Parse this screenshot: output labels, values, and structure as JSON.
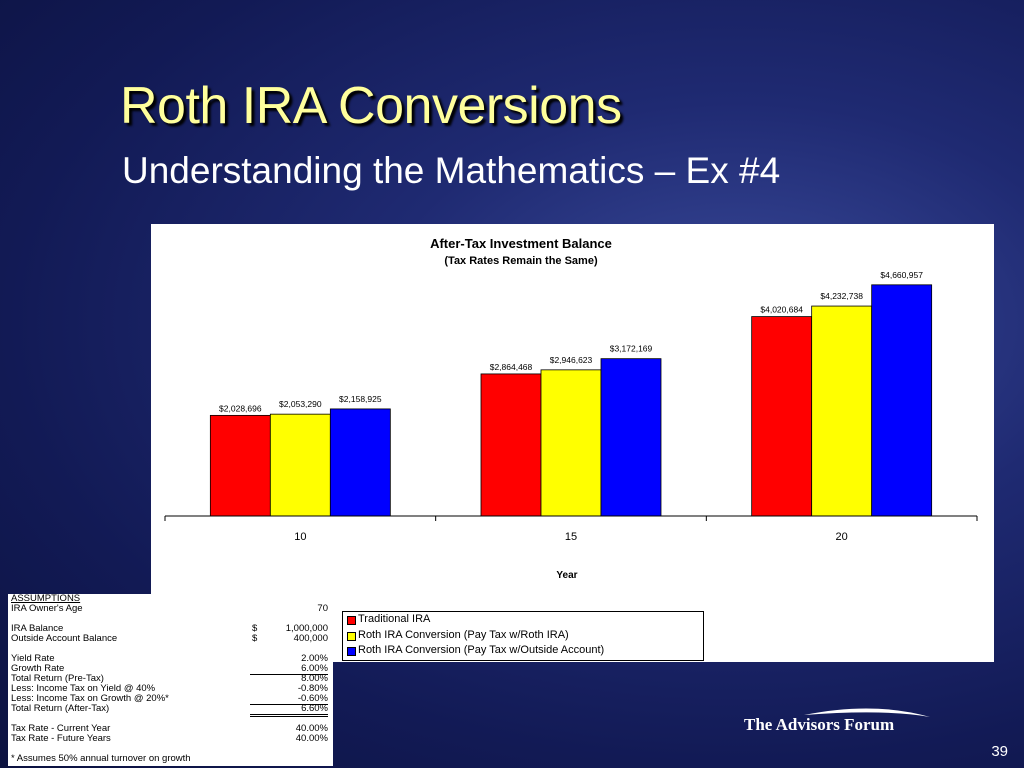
{
  "slide": {
    "title": "Roth IRA Conversions",
    "subtitle": "Understanding the Mathematics – Ex #4",
    "logo_text": "The Advisors Forum",
    "page_number": "39"
  },
  "chart_data": {
    "type": "bar",
    "title": "After-Tax Investment Balance",
    "subtitle": "(Tax Rates Remain the Same)",
    "xlabel": "Year",
    "ylabel": "",
    "categories": [
      "10",
      "15",
      "20"
    ],
    "ylim": [
      0,
      5000000
    ],
    "grid": false,
    "legend_position": "bottom",
    "series": [
      {
        "name": "Traditional IRA",
        "color": "#ff0000",
        "values": [
          2028696,
          2864468,
          4020684
        ],
        "labels": [
          "$2,028,696",
          "$2,864,468",
          "$4,020,684"
        ]
      },
      {
        "name": "Roth IRA Conversion (Pay Tax w/Roth IRA)",
        "color": "#ffff00",
        "values": [
          2053290,
          2946623,
          4232738
        ],
        "labels": [
          "$2,053,290",
          "$2,946,623",
          "$4,232,738"
        ]
      },
      {
        "name": "Roth IRA Conversion (Pay Tax w/Outside Account)",
        "color": "#0000ff",
        "values": [
          2158925,
          3172169,
          4660957
        ],
        "labels": [
          "$2,158,925",
          "$3,172,169",
          "$4,660,957"
        ]
      }
    ]
  },
  "assumptions": {
    "header": "ASSUMPTIONS",
    "owner_age_label": "IRA Owner's Age",
    "owner_age_value": "70",
    "ira_balance_label": "IRA Balance",
    "ira_balance_currency": "$",
    "ira_balance_value": "1,000,000",
    "outside_balance_label": "Outside Account Balance",
    "outside_balance_currency": "$",
    "outside_balance_value": "400,000",
    "yield_rate_label": "Yield Rate",
    "yield_rate_value": "2.00%",
    "growth_rate_label": "Growth Rate",
    "growth_rate_value": "6.00%",
    "total_return_pretax_label": "Total Return (Pre-Tax)",
    "total_return_pretax_value": "8.00%",
    "tax_on_yield_label": "Less: Income Tax on Yield @ 40%",
    "tax_on_yield_value": "-0.80%",
    "tax_on_growth_label": "Less: Income Tax on Growth @ 20%*",
    "tax_on_growth_value": "-0.60%",
    "total_return_aftertax_label": "Total Return (After-Tax)",
    "total_return_aftertax_value": "6.60%",
    "tax_rate_current_label": "Tax Rate - Current Year",
    "tax_rate_current_value": "40.00%",
    "tax_rate_future_label": "Tax Rate - Future Years",
    "tax_rate_future_value": "40.00%",
    "footnote": "* Assumes 50% annual turnover on growth"
  }
}
